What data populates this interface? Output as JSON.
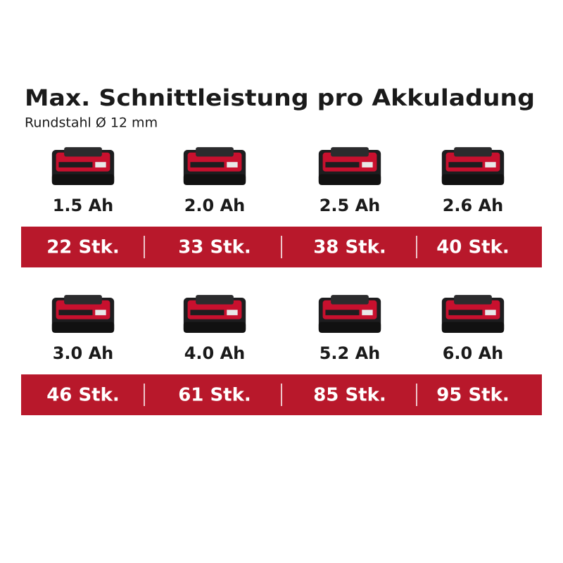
{
  "header": {
    "title": "Max. Schnittleistung pro Akkuladung",
    "subtitle": "Rundstahl Ø 12 mm"
  },
  "rows": [
    {
      "items": [
        {
          "capacity": "1.5 Ah",
          "count": "22 Stk."
        },
        {
          "capacity": "2.0 Ah",
          "count": "33 Stk."
        },
        {
          "capacity": "2.5 Ah",
          "count": "38 Stk."
        },
        {
          "capacity": "2.6 Ah",
          "count": "40 Stk."
        }
      ]
    },
    {
      "items": [
        {
          "capacity": "3.0 Ah",
          "count": "46 Stk."
        },
        {
          "capacity": "4.0 Ah",
          "count": "61 Stk."
        },
        {
          "capacity": "5.2 Ah",
          "count": "85 Stk."
        },
        {
          "capacity": "6.0 Ah",
          "count": "95 Stk."
        }
      ]
    }
  ]
}
